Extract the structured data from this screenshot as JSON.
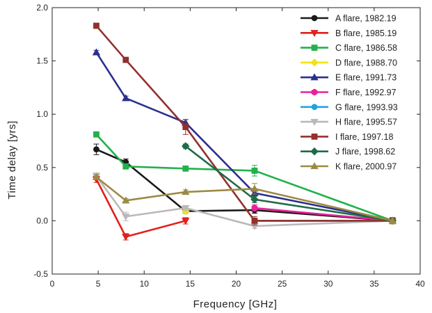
{
  "chart_data": {
    "type": "line",
    "title": "",
    "xlabel": "Frequency [GHz]",
    "ylabel": "Time delay [yrs]",
    "xlim": [
      0,
      40
    ],
    "ylim": [
      -0.5,
      2.0
    ],
    "xticks": [
      0,
      5,
      10,
      15,
      20,
      25,
      30,
      35,
      40
    ],
    "yticks": [
      -0.5,
      0.0,
      0.5,
      1.0,
      1.5,
      2.0
    ],
    "ytick_labels": [
      "-0.5",
      "0.0",
      "0.5",
      "1.0",
      "1.5",
      "2.0"
    ],
    "grid": false,
    "legend_position": "top-right",
    "series": [
      {
        "name": "A flare, 1982.19",
        "color": "#1a1a1a",
        "marker": "circle",
        "x": [
          4.8,
          8.0,
          14.5,
          22.0,
          37.0
        ],
        "y": [
          0.67,
          0.55,
          0.09,
          0.1,
          0.0
        ],
        "err": [
          0.05,
          0.03,
          0.02,
          0.03,
          0.03
        ]
      },
      {
        "name": "B flare, 1985.19",
        "color": "#e0201c",
        "marker": "triangle-down",
        "x": [
          4.8,
          8.0,
          14.5
        ],
        "y": [
          0.39,
          -0.15,
          0.0
        ],
        "err": [
          0.03,
          0.03,
          0.03
        ]
      },
      {
        "name": "C flare, 1986.58",
        "color": "#22b14c",
        "marker": "square",
        "x": [
          4.8,
          8.0,
          14.5,
          22.0,
          37.0
        ],
        "y": [
          0.81,
          0.51,
          0.49,
          0.47,
          0.0
        ],
        "err": [
          0.02,
          0.02,
          0.02,
          0.05,
          0.03
        ]
      },
      {
        "name": "D flare, 1988.70",
        "color": "#f2e21c",
        "marker": "diamond",
        "x": [
          14.5
        ],
        "y": [
          0.09
        ],
        "err": [
          0.02
        ]
      },
      {
        "name": "E flare, 1991.73",
        "color": "#2b2f8e",
        "marker": "triangle-up",
        "x": [
          4.8,
          8.0,
          14.5,
          22.0,
          37.0
        ],
        "y": [
          1.58,
          1.15,
          0.92,
          0.26,
          0.0
        ],
        "err": [
          0.02,
          0.02,
          0.03,
          0.03,
          0.03
        ]
      },
      {
        "name": "F flare, 1992.97",
        "color": "#e8229a",
        "marker": "hexagon",
        "x": [
          22.0,
          37.0
        ],
        "y": [
          0.12,
          0.0
        ],
        "err": [
          0.03,
          0.03
        ]
      },
      {
        "name": "G flare, 1993.93",
        "color": "#1fa3e0",
        "marker": "circle",
        "x": [
          22.0,
          37.0
        ],
        "y": [
          0.0,
          0.0
        ],
        "err": [
          0.02,
          0.03
        ]
      },
      {
        "name": "H flare, 1995.57",
        "color": "#bdb8b8",
        "marker": "triangle-down",
        "x": [
          4.8,
          8.0,
          14.5,
          22.0,
          37.0
        ],
        "y": [
          0.42,
          0.04,
          0.12,
          -0.05,
          0.0
        ],
        "err": [
          0.03,
          0.04,
          0.02,
          0.02,
          0.03
        ]
      },
      {
        "name": "I flare, 1997.18",
        "color": "#92302c",
        "marker": "square",
        "x": [
          4.8,
          8.0,
          14.5,
          22.0,
          37.0
        ],
        "y": [
          1.83,
          1.51,
          0.88,
          0.0,
          0.0
        ],
        "err": [
          0.02,
          0.02,
          0.07,
          0.04,
          0.03
        ]
      },
      {
        "name": "J flare, 1998.62",
        "color": "#1f6b48",
        "marker": "diamond",
        "x": [
          14.5,
          22.0,
          37.0
        ],
        "y": [
          0.7,
          0.2,
          0.0
        ],
        "err": [
          0.02,
          0.03,
          0.03
        ]
      },
      {
        "name": "K flare, 2000.97",
        "color": "#9c8a44",
        "marker": "triangle-up",
        "x": [
          4.8,
          8.0,
          14.5,
          22.0,
          37.0
        ],
        "y": [
          0.41,
          0.19,
          0.27,
          0.3,
          0.0
        ],
        "err": [
          0.02,
          0.02,
          0.02,
          0.05,
          0.03
        ]
      }
    ]
  }
}
